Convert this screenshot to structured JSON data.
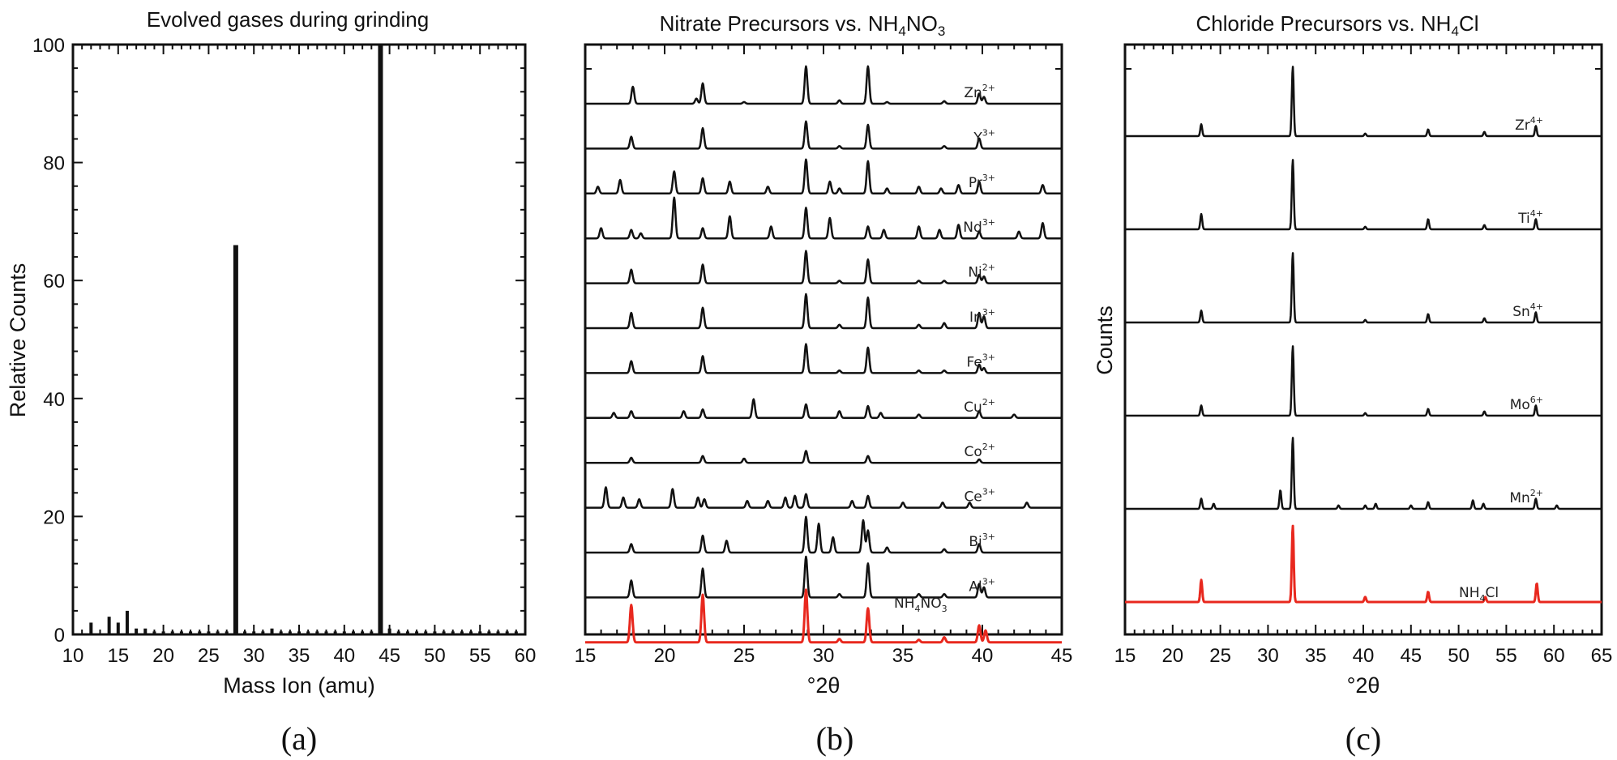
{
  "chart_data": [
    {
      "type": "bar",
      "title": "Evolved gases during grinding",
      "xlabel": "Mass Ion (amu)",
      "ylabel": "Relative Counts",
      "xlim": [
        10,
        60
      ],
      "ylim": [
        0,
        100
      ],
      "xticks": [
        "10",
        "15",
        "20",
        "25",
        "30",
        "35",
        "40",
        "45",
        "50",
        "55",
        "60"
      ],
      "yticks": [
        "0",
        "20",
        "40",
        "60",
        "80",
        "100"
      ],
      "x": [
        12,
        14,
        15,
        16,
        17,
        18,
        19,
        20,
        21,
        22,
        23,
        24,
        25,
        26,
        27,
        28,
        29,
        30,
        31,
        32,
        33,
        34,
        35,
        36,
        37,
        38,
        39,
        40,
        41,
        42,
        43,
        44,
        45,
        46,
        47,
        48,
        49,
        50,
        51,
        52,
        53,
        54,
        55,
        56,
        57,
        58,
        59
      ],
      "values": [
        2,
        3,
        2,
        4,
        1,
        1,
        0.5,
        0.5,
        0.5,
        0.5,
        0.5,
        0.5,
        0.5,
        0.5,
        0.5,
        66,
        0.5,
        0.5,
        0.5,
        1,
        0.5,
        0.5,
        0.5,
        0.5,
        0.5,
        0.5,
        0.5,
        0.5,
        0.5,
        0.5,
        0.5,
        100,
        1,
        0.5,
        0.5,
        0.5,
        0.5,
        0.5,
        0.5,
        0.5,
        0.5,
        0.5,
        0.5,
        0.5,
        0.5,
        0.5,
        0.5
      ],
      "caption": "(a)"
    },
    {
      "type": "line",
      "title_main": "Nitrate Precursors vs. NH",
      "title_sub1": "4",
      "title_mid": "NO",
      "title_sub2": "3",
      "xlabel": "°2θ",
      "xlim": [
        15,
        45
      ],
      "xticks": [
        "15",
        "20",
        "25",
        "30",
        "35",
        "40",
        "45"
      ],
      "series": [
        {
          "ion": "Zn",
          "charge": "2+",
          "peaks": [
            [
              18,
              20
            ],
            [
              22.4,
              24
            ],
            [
              22,
              6
            ],
            [
              28.9,
              44
            ],
            [
              32.8,
              44
            ],
            [
              31,
              4
            ],
            [
              39.8,
              12
            ],
            [
              40.1,
              8
            ],
            [
              37.6,
              3
            ],
            [
              25,
              2
            ],
            [
              34,
              2
            ]
          ]
        },
        {
          "ion": "Y",
          "charge": "3+",
          "peaks": [
            [
              17.9,
              14
            ],
            [
              22.4,
              24
            ],
            [
              28.9,
              32
            ],
            [
              32.8,
              28
            ],
            [
              39.8,
              12
            ],
            [
              31,
              3
            ],
            [
              37.6,
              3
            ]
          ]
        },
        {
          "ion": "Pr",
          "charge": "3+",
          "peaks": [
            [
              15.8,
              8
            ],
            [
              17.2,
              16
            ],
            [
              20.6,
              26
            ],
            [
              22.4,
              18
            ],
            [
              24.1,
              14
            ],
            [
              26.5,
              8
            ],
            [
              28.9,
              40
            ],
            [
              30.4,
              14
            ],
            [
              31,
              6
            ],
            [
              32.8,
              38
            ],
            [
              34,
              6
            ],
            [
              36,
              8
            ],
            [
              37.4,
              6
            ],
            [
              38.5,
              10
            ],
            [
              39.8,
              14
            ],
            [
              43.8,
              10
            ]
          ]
        },
        {
          "ion": "Nd",
          "charge": "3+",
          "peaks": [
            [
              16,
              12
            ],
            [
              17.9,
              10
            ],
            [
              18.5,
              6
            ],
            [
              20.6,
              48
            ],
            [
              22.4,
              12
            ],
            [
              24.1,
              26
            ],
            [
              26.7,
              14
            ],
            [
              28.9,
              36
            ],
            [
              30.4,
              24
            ],
            [
              32.8,
              14
            ],
            [
              33.8,
              10
            ],
            [
              36,
              14
            ],
            [
              37.3,
              10
            ],
            [
              38.5,
              16
            ],
            [
              39.8,
              8
            ],
            [
              42.3,
              8
            ],
            [
              43.8,
              18
            ]
          ]
        },
        {
          "ion": "Ni",
          "charge": "2+",
          "peaks": [
            [
              17.9,
              16
            ],
            [
              22.4,
              22
            ],
            [
              28.9,
              38
            ],
            [
              32.8,
              28
            ],
            [
              31,
              3
            ],
            [
              36,
              3
            ],
            [
              37.6,
              3
            ],
            [
              39.8,
              10
            ],
            [
              40.1,
              8
            ]
          ]
        },
        {
          "ion": "In",
          "charge": "3+",
          "peaks": [
            [
              17.9,
              18
            ],
            [
              22.4,
              24
            ],
            [
              28.9,
              40
            ],
            [
              32.8,
              36
            ],
            [
              31,
              4
            ],
            [
              36,
              4
            ],
            [
              37.6,
              6
            ],
            [
              39.8,
              18
            ],
            [
              40.1,
              14
            ]
          ]
        },
        {
          "ion": "Fe",
          "charge": "3+",
          "peaks": [
            [
              17.9,
              14
            ],
            [
              22.4,
              20
            ],
            [
              28.9,
              34
            ],
            [
              32.8,
              30
            ],
            [
              31,
              3
            ],
            [
              36,
              3
            ],
            [
              37.6,
              3
            ],
            [
              39.8,
              10
            ],
            [
              40.1,
              6
            ]
          ]
        },
        {
          "ion": "Cu",
          "charge": "2+",
          "peaks": [
            [
              16.8,
              6
            ],
            [
              17.9,
              8
            ],
            [
              21.2,
              8
            ],
            [
              22.4,
              10
            ],
            [
              25.6,
              22
            ],
            [
              28.9,
              16
            ],
            [
              31,
              8
            ],
            [
              32.8,
              14
            ],
            [
              33.6,
              6
            ],
            [
              36,
              4
            ],
            [
              39.8,
              8
            ],
            [
              42,
              4
            ]
          ]
        },
        {
          "ion": "Co",
          "charge": "2+",
          "peaks": [
            [
              17.9,
              6
            ],
            [
              22.4,
              8
            ],
            [
              25,
              5
            ],
            [
              28.9,
              14
            ],
            [
              32.8,
              8
            ],
            [
              39.8,
              4
            ]
          ]
        },
        {
          "ion": "Ce",
          "charge": "3+",
          "peaks": [
            [
              16.3,
              24
            ],
            [
              17.4,
              12
            ],
            [
              18.4,
              10
            ],
            [
              20.5,
              22
            ],
            [
              22.1,
              12
            ],
            [
              22.5,
              10
            ],
            [
              25.2,
              8
            ],
            [
              26.5,
              8
            ],
            [
              27.6,
              12
            ],
            [
              28.2,
              14
            ],
            [
              28.9,
              16
            ],
            [
              31.8,
              8
            ],
            [
              32.8,
              14
            ],
            [
              35,
              6
            ],
            [
              37.5,
              6
            ],
            [
              39.2,
              6
            ],
            [
              42.8,
              6
            ]
          ]
        },
        {
          "ion": "Bi",
          "charge": "3+",
          "peaks": [
            [
              17.9,
              10
            ],
            [
              22.4,
              20
            ],
            [
              23.9,
              14
            ],
            [
              28.9,
              42
            ],
            [
              29.7,
              34
            ],
            [
              32.5,
              38
            ],
            [
              32.8,
              26
            ],
            [
              34,
              6
            ],
            [
              37.6,
              4
            ],
            [
              39.8,
              10
            ],
            [
              30.6,
              18
            ]
          ]
        },
        {
          "ion": "Al",
          "charge": "3+",
          "peaks": [
            [
              17.9,
              20
            ],
            [
              22.4,
              34
            ],
            [
              28.9,
              48
            ],
            [
              32.8,
              40
            ],
            [
              31,
              4
            ],
            [
              36,
              4
            ],
            [
              37.6,
              4
            ],
            [
              39.8,
              16
            ],
            [
              40.1,
              12
            ]
          ]
        },
        {
          "ion": "NH4NO3",
          "charge": "",
          "peaks": [
            [
              17.9,
              44
            ],
            [
              22.4,
              56
            ],
            [
              28.9,
              62
            ],
            [
              32.8,
              40
            ],
            [
              31,
              4
            ],
            [
              36,
              3
            ],
            [
              37.6,
              6
            ],
            [
              39.8,
              20
            ],
            [
              40.2,
              14
            ]
          ],
          "color": "#e8281e"
        }
      ],
      "label_nh4no3_a": "NH",
      "label_nh4no3_b": "4",
      "label_nh4no3_c": "NO",
      "label_nh4no3_d": "3",
      "caption": "(b)"
    },
    {
      "type": "line",
      "title_main": "Chloride Precursors vs. NH",
      "title_sub": "4",
      "title_end": "Cl",
      "xlabel": "°2θ",
      "ylabel": "Counts",
      "xlim": [
        15,
        65
      ],
      "xticks": [
        "15",
        "20",
        "25",
        "30",
        "35",
        "40",
        "45",
        "50",
        "55",
        "60",
        "65"
      ],
      "series": [
        {
          "ion": "Zr",
          "charge": "4+",
          "peaks": [
            [
              23,
              14
            ],
            [
              32.6,
              82
            ],
            [
              40.2,
              3
            ],
            [
              46.8,
              8
            ],
            [
              52.7,
              5
            ],
            [
              58.1,
              12
            ]
          ]
        },
        {
          "ion": "Ti",
          "charge": "4+",
          "peaks": [
            [
              23,
              18
            ],
            [
              32.6,
              82
            ],
            [
              40.2,
              3
            ],
            [
              46.8,
              12
            ],
            [
              52.7,
              5
            ],
            [
              58.1,
              12
            ]
          ]
        },
        {
          "ion": "Sn",
          "charge": "4+",
          "peaks": [
            [
              23,
              14
            ],
            [
              32.6,
              82
            ],
            [
              40.2,
              3
            ],
            [
              46.8,
              10
            ],
            [
              52.7,
              5
            ],
            [
              58.1,
              12
            ]
          ]
        },
        {
          "ion": "Mo",
          "charge": "6+",
          "peaks": [
            [
              23,
              12
            ],
            [
              32.6,
              82
            ],
            [
              40.2,
              3
            ],
            [
              46.8,
              8
            ],
            [
              52.7,
              5
            ],
            [
              58.1,
              12
            ]
          ]
        },
        {
          "ion": "Mn",
          "charge": "2+",
          "peaks": [
            [
              23,
              12
            ],
            [
              24.3,
              6
            ],
            [
              31.3,
              22
            ],
            [
              32.6,
              84
            ],
            [
              37.4,
              4
            ],
            [
              40.2,
              4
            ],
            [
              41.3,
              6
            ],
            [
              45,
              4
            ],
            [
              46.8,
              8
            ],
            [
              51.5,
              10
            ],
            [
              52.6,
              6
            ],
            [
              58.1,
              12
            ],
            [
              60.3,
              4
            ]
          ]
        },
        {
          "ion": "NH4Cl",
          "charge": "",
          "peaks": [
            [
              23,
              26
            ],
            [
              32.6,
              90
            ],
            [
              40.2,
              6
            ],
            [
              46.8,
              12
            ],
            [
              52.8,
              6
            ],
            [
              58.2,
              22
            ]
          ],
          "color": "#e8281e"
        }
      ],
      "label_nh4cl_a": "NH",
      "label_nh4cl_b": "4",
      "label_nh4cl_c": "Cl",
      "caption": "(c)"
    }
  ]
}
